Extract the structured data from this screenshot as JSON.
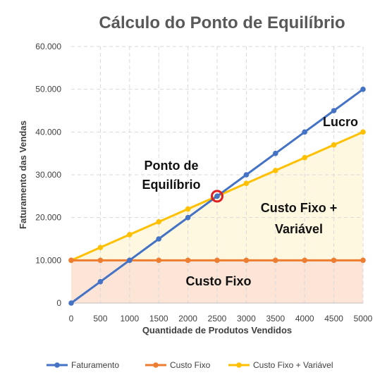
{
  "chart_data": {
    "type": "line",
    "title": "Cálculo do Ponto de Equilíbrio",
    "xlabel": "Quantidade de Produtos Vendidos",
    "ylabel": "Faturamento das Vendas",
    "x": [
      0,
      500,
      1000,
      1500,
      2000,
      2500,
      3000,
      3500,
      4000,
      4500,
      5000
    ],
    "x_tick_labels": [
      "0",
      "500",
      "1000",
      "1500",
      "2000",
      "2500",
      "3000",
      "3500",
      "4000",
      "4500",
      "5000"
    ],
    "y_ticks": [
      0,
      10000,
      20000,
      30000,
      40000,
      50000,
      60000
    ],
    "y_tick_labels": [
      "0",
      "10.000",
      "20.000",
      "30.000",
      "40.000",
      "50.000",
      "60.000"
    ],
    "xlim": [
      0,
      5000
    ],
    "ylim": [
      0,
      60000
    ],
    "grid": true,
    "legend_position": "bottom",
    "series": [
      {
        "name": "Faturamento",
        "color": "#4472C4",
        "values": [
          0,
          5000,
          10000,
          15000,
          20000,
          25000,
          30000,
          35000,
          40000,
          45000,
          50000
        ]
      },
      {
        "name": "Custo Fixo",
        "color": "#ED7D31",
        "values": [
          10000,
          10000,
          10000,
          10000,
          10000,
          10000,
          10000,
          10000,
          10000,
          10000,
          10000
        ]
      },
      {
        "name": "Custo Fixo + Variável",
        "color": "#FFC000",
        "values": [
          10000,
          13000,
          16000,
          19000,
          22000,
          25000,
          28000,
          31000,
          34000,
          37000,
          40000
        ]
      }
    ],
    "fill_colors": {
      "custo_fixo_area": "#FCE4D6",
      "custo_variavel_area": "#FFF8E1"
    },
    "break_even": {
      "x": 2500,
      "y": 25000,
      "marker_color": "#E02020"
    },
    "annotations": {
      "ponto_line1": "Ponto de",
      "ponto_line2": "Equilíbrio",
      "lucro": "Lucro",
      "custo_fixo_var_line1": "Custo Fixo +",
      "custo_fixo_var_line2": "Variável",
      "custo_fixo": "Custo Fixo"
    }
  }
}
